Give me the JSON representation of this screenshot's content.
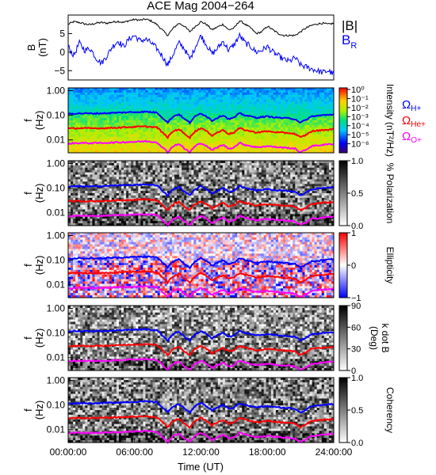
{
  "figure": {
    "title": "ACE Mag 2004−264",
    "xlabel": "Time (UT)",
    "x_ticks": [
      "00:00:00",
      "06:00:00",
      "12:00:00",
      "18:00:00",
      "24:00:00"
    ],
    "x_tick_hours": [
      0,
      6,
      12,
      18,
      24
    ],
    "x_range_hours": [
      0,
      24
    ]
  },
  "chart_data": [
    {
      "type": "line",
      "panel": "magnetic-field",
      "ylabel_line1": "B",
      "ylabel_line2": "(nT)",
      "ylim": [
        -7.5,
        10
      ],
      "y_ticks": [
        "5",
        "0",
        "−5"
      ],
      "y_tick_values": [
        5,
        0,
        -5
      ],
      "series": [
        {
          "name": "|B|",
          "color": "#000000",
          "x": [
            0,
            0.5,
            1,
            1.5,
            2,
            2.5,
            3,
            3.5,
            4,
            4.5,
            5,
            5.5,
            6,
            6.5,
            7,
            7.5,
            8,
            8.5,
            9,
            9.5,
            10,
            10.5,
            11,
            11.5,
            12,
            12.5,
            13,
            13.5,
            14,
            14.5,
            15,
            15.5,
            16,
            16.5,
            17,
            17.5,
            18,
            18.5,
            19,
            19.5,
            20,
            20.5,
            21,
            21.5,
            22,
            22.5,
            23,
            23.5,
            24
          ],
          "values": [
            7.5,
            8.2,
            8.0,
            7.6,
            7.4,
            7.8,
            8.0,
            7.8,
            8.1,
            8.3,
            8.0,
            8.5,
            8.8,
            8.6,
            8.9,
            8.4,
            7.5,
            6.0,
            4.5,
            6.5,
            7.8,
            7.0,
            5.5,
            7.0,
            8.2,
            7.5,
            6.0,
            6.8,
            7.5,
            6.0,
            6.5,
            8.5,
            7.5,
            6.5,
            5.0,
            5.5,
            7.0,
            6.0,
            5.0,
            4.5,
            4.5,
            4.5,
            5.5,
            6.5,
            7.2,
            7.6,
            7.8,
            7.5,
            7.8
          ]
        },
        {
          "name": "B_R",
          "color": "#0000ff",
          "x": [
            0,
            0.5,
            1,
            1.5,
            2,
            2.5,
            3,
            3.5,
            4,
            4.5,
            5,
            5.5,
            6,
            6.5,
            7,
            7.5,
            8,
            8.5,
            9,
            9.5,
            10,
            10.5,
            11,
            11.5,
            12,
            12.5,
            13,
            13.5,
            14,
            14.5,
            15,
            15.5,
            16,
            16.5,
            17,
            17.5,
            18,
            18.5,
            19,
            19.5,
            20,
            20.5,
            21,
            21.5,
            22,
            22.5,
            23,
            23.5,
            24
          ],
          "values": [
            1.5,
            -1.0,
            2.5,
            0.5,
            1.0,
            -1.5,
            -3.0,
            -1.0,
            1.5,
            3.0,
            1.5,
            3.5,
            4.5,
            3.0,
            3.5,
            2.5,
            1.0,
            -1.0,
            -3.5,
            -0.5,
            2.5,
            1.0,
            -2.0,
            1.5,
            4.5,
            2.0,
            -0.5,
            1.0,
            3.0,
            0.5,
            2.0,
            4.5,
            2.5,
            1.5,
            0.0,
            0.5,
            1.5,
            0.0,
            -1.0,
            -2.0,
            -2.5,
            -1.5,
            -3.5,
            -4.0,
            -4.5,
            -5.0,
            -5.5,
            -5.0,
            -6.0
          ]
        }
      ]
    },
    {
      "type": "heatmap",
      "panel": "power-spectrum",
      "ylabel_line1": "f",
      "ylabel_line2": "(Hz)",
      "y_scale": "log",
      "ylim": [
        0.003,
        1.3
      ],
      "y_ticks": [
        "1.00",
        "0.10",
        "0.01"
      ],
      "y_tick_values": [
        1.0,
        0.1,
        0.01
      ],
      "colorbar_label": "Intensity (nT²/Hz)",
      "colorbar_ticks": [
        "10⁰",
        "10⁻¹",
        "10⁻²",
        "10⁻³",
        "10⁻⁴",
        "10⁻⁵",
        "10⁻⁶"
      ],
      "colorbar_tick_values": [
        1,
        0.1,
        0.01,
        0.001,
        0.0001,
        1e-05,
        1e-06
      ],
      "colorbar_range": [
        1e-07,
        1.5
      ],
      "colormap": "rainbow",
      "gyrofrequency_lines": true
    },
    {
      "type": "heatmap",
      "panel": "polarization",
      "ylabel_line1": "f",
      "ylabel_line2": "(Hz)",
      "y_scale": "log",
      "ylim": [
        0.003,
        1.3
      ],
      "y_ticks": [
        "1.00",
        "0.10",
        "0.01"
      ],
      "y_tick_values": [
        1.0,
        0.1,
        0.01
      ],
      "colorbar_label": "% Polarization",
      "colorbar_ticks": [
        "1.0",
        "0.5",
        "0.0"
      ],
      "colorbar_tick_values": [
        1.0,
        0.5,
        0.0
      ],
      "colorbar_range": [
        0,
        1
      ],
      "colormap": "grayscale",
      "gyrofrequency_lines": true
    },
    {
      "type": "heatmap",
      "panel": "ellipticity",
      "ylabel_line1": "f",
      "ylabel_line2": "(Hz)",
      "y_scale": "log",
      "ylim": [
        0.003,
        1.3
      ],
      "y_ticks": [
        "1.00",
        "0.10",
        "0.01"
      ],
      "y_tick_values": [
        1.0,
        0.1,
        0.01
      ],
      "colorbar_label": "Ellipticity",
      "colorbar_ticks": [
        "1",
        "0",
        "−1"
      ],
      "colorbar_tick_values": [
        1,
        0,
        -1
      ],
      "colorbar_range": [
        -1,
        1
      ],
      "colormap": "blue-white-red",
      "gyrofrequency_lines": true
    },
    {
      "type": "heatmap",
      "panel": "wave-normal-angle",
      "ylabel_line1": "f",
      "ylabel_line2": "(Hz)",
      "y_scale": "log",
      "ylim": [
        0.003,
        1.3
      ],
      "y_ticks": [
        "1.00",
        "0.10",
        "0.01"
      ],
      "y_tick_values": [
        1.0,
        0.1,
        0.01
      ],
      "colorbar_label": "k dot B",
      "colorbar_label2": "(Deg)",
      "colorbar_ticks": [
        "90",
        "60",
        "30",
        "0"
      ],
      "colorbar_tick_values": [
        90,
        60,
        30,
        0
      ],
      "colorbar_range": [
        0,
        90
      ],
      "colormap": "grayscale",
      "gyrofrequency_lines": true
    },
    {
      "type": "heatmap",
      "panel": "coherency",
      "ylabel_line1": "f",
      "ylabel_line2": "(Hz)",
      "y_scale": "log",
      "ylim": [
        0.003,
        1.3
      ],
      "y_ticks": [
        "1.00",
        "0.10",
        "0.01"
      ],
      "y_tick_values": [
        1.0,
        0.1,
        0.01
      ],
      "colorbar_label": "Coherency",
      "colorbar_ticks": [
        "1.0",
        "0.5",
        "0.0"
      ],
      "colorbar_tick_values": [
        1.0,
        0.5,
        0.0
      ],
      "colorbar_range": [
        0,
        1
      ],
      "colormap": "grayscale",
      "gyrofrequency_lines": true
    }
  ],
  "gyrofrequencies": {
    "x": [
      0,
      1,
      2,
      3,
      4,
      5,
      6,
      7,
      8,
      8.5,
      9,
      9.5,
      10,
      10.5,
      11,
      11.5,
      12,
      12.5,
      13,
      13.5,
      14,
      14.5,
      15,
      15.5,
      16,
      17,
      18,
      19,
      20,
      20.5,
      21,
      21.5,
      22,
      23,
      24
    ],
    "series": [
      {
        "name": "ΩH+",
        "label_main": "Ω",
        "label_sub": "H+",
        "color": "#0000ff",
        "mass_ratio": 1,
        "values": [
          0.115,
          0.12,
          0.118,
          0.12,
          0.125,
          0.13,
          0.135,
          0.14,
          0.13,
          0.08,
          0.05,
          0.09,
          0.11,
          0.07,
          0.05,
          0.09,
          0.12,
          0.09,
          0.06,
          0.08,
          0.1,
          0.07,
          0.08,
          0.12,
          0.1,
          0.08,
          0.09,
          0.08,
          0.075,
          0.07,
          0.05,
          0.065,
          0.09,
          0.1,
          0.11
        ]
      },
      {
        "name": "ΩHe+",
        "label_main": "Ω",
        "label_sub": "He+",
        "color": "#ff0000",
        "mass_ratio": 4,
        "values": [
          0.029,
          0.03,
          0.0295,
          0.03,
          0.031,
          0.0325,
          0.034,
          0.035,
          0.0325,
          0.02,
          0.0125,
          0.0225,
          0.0275,
          0.0175,
          0.0125,
          0.0225,
          0.03,
          0.0225,
          0.015,
          0.02,
          0.025,
          0.0175,
          0.02,
          0.03,
          0.025,
          0.02,
          0.0225,
          0.02,
          0.019,
          0.0175,
          0.0125,
          0.016,
          0.0225,
          0.025,
          0.0275
        ]
      },
      {
        "name": "ΩO+",
        "label_main": "Ω",
        "label_sub": "O+",
        "color": "#ff00ff",
        "mass_ratio": 16,
        "values": [
          0.0072,
          0.0075,
          0.0074,
          0.0075,
          0.0078,
          0.0081,
          0.0084,
          0.0088,
          0.0081,
          0.005,
          0.0031,
          0.0056,
          0.0069,
          0.0044,
          0.0031,
          0.0056,
          0.0075,
          0.0056,
          0.0038,
          0.005,
          0.0063,
          0.0044,
          0.005,
          0.0075,
          0.0063,
          0.005,
          0.0056,
          0.005,
          0.0047,
          0.0044,
          0.0031,
          0.004,
          0.0056,
          0.0063,
          0.0069
        ]
      }
    ]
  },
  "legend": {
    "btotal_label": "|B|",
    "br_main": "B",
    "br_sub": "R",
    "btotal_color": "#000000",
    "br_color": "#0000ff"
  }
}
